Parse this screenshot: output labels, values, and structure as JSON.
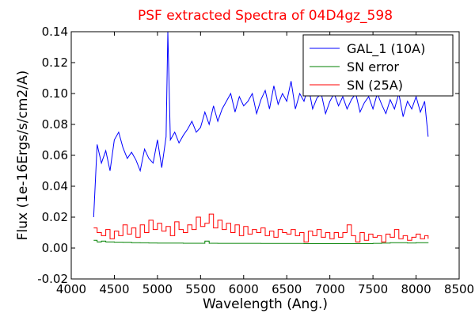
{
  "chart_data": {
    "type": "line",
    "title": "PSF extracted Spectra of 04D4gz_598",
    "title_color": "#ff0000",
    "xlabel": "Wavelength (Ang.)",
    "ylabel": "Flux (1e-16Ergs/s/cm2/A)",
    "xlim": [
      4000,
      8500
    ],
    "ylim": [
      -0.02,
      0.14
    ],
    "x_ticks": [
      4000,
      4500,
      5000,
      5500,
      6000,
      6500,
      7000,
      7500,
      8000,
      8500
    ],
    "x_tick_labels": [
      "4000",
      "4500",
      "5000",
      "5500",
      "6000",
      "6500",
      "7000",
      "7500",
      "8000",
      "8500"
    ],
    "y_ticks": [
      -0.02,
      0.0,
      0.02,
      0.04,
      0.06,
      0.08,
      0.1,
      0.12,
      0.14
    ],
    "y_tick_labels": [
      "-0.02",
      "0.00",
      "0.02",
      "0.04",
      "0.06",
      "0.08",
      "0.10",
      "0.12",
      "0.14"
    ],
    "grid": false,
    "legend_position": "top-right",
    "series": [
      {
        "name": "GAL_1 (10A)",
        "color": "#0000ff",
        "style": "line",
        "x": [
          4260,
          4300,
          4350,
          4400,
          4450,
          4500,
          4550,
          4600,
          4650,
          4700,
          4750,
          4800,
          4850,
          4900,
          4950,
          5000,
          5050,
          5100,
          5120,
          5150,
          5200,
          5250,
          5300,
          5350,
          5400,
          5450,
          5500,
          5550,
          5600,
          5650,
          5700,
          5750,
          5800,
          5850,
          5900,
          5950,
          6000,
          6050,
          6100,
          6150,
          6200,
          6250,
          6300,
          6350,
          6400,
          6450,
          6500,
          6550,
          6600,
          6650,
          6700,
          6750,
          6800,
          6850,
          6900,
          6950,
          7000,
          7050,
          7100,
          7150,
          7200,
          7250,
          7300,
          7350,
          7400,
          7450,
          7500,
          7550,
          7600,
          7650,
          7700,
          7750,
          7800,
          7850,
          7900,
          7950,
          8000,
          8050,
          8100,
          8140
        ],
        "y": [
          0.02,
          0.067,
          0.055,
          0.063,
          0.05,
          0.07,
          0.075,
          0.065,
          0.058,
          0.062,
          0.057,
          0.05,
          0.064,
          0.058,
          0.055,
          0.07,
          0.052,
          0.072,
          0.14,
          0.07,
          0.075,
          0.068,
          0.073,
          0.077,
          0.082,
          0.075,
          0.078,
          0.088,
          0.08,
          0.092,
          0.082,
          0.09,
          0.095,
          0.1,
          0.088,
          0.098,
          0.092,
          0.095,
          0.1,
          0.087,
          0.096,
          0.102,
          0.09,
          0.105,
          0.093,
          0.1,
          0.095,
          0.108,
          0.09,
          0.1,
          0.095,
          0.105,
          0.09,
          0.097,
          0.1,
          0.087,
          0.095,
          0.1,
          0.092,
          0.098,
          0.09,
          0.096,
          0.1,
          0.088,
          0.094,
          0.098,
          0.09,
          0.1,
          0.093,
          0.087,
          0.096,
          0.09,
          0.1,
          0.085,
          0.095,
          0.09,
          0.098,
          0.088,
          0.095,
          0.072
        ]
      },
      {
        "name": "SN error",
        "color": "#008000",
        "style": "step",
        "x": [
          4260,
          4300,
          4350,
          4400,
          4500,
          4600,
          4700,
          4800,
          4900,
          5000,
          5100,
          5200,
          5300,
          5400,
          5500,
          5550,
          5600,
          5700,
          5800,
          5900,
          6000,
          6100,
          6200,
          6300,
          6400,
          6500,
          6600,
          6700,
          6800,
          6900,
          7000,
          7100,
          7200,
          7300,
          7400,
          7500,
          7600,
          7700,
          7800,
          7900,
          8000,
          8100,
          8140
        ],
        "y": [
          0.005,
          0.004,
          0.0045,
          0.004,
          0.0038,
          0.0037,
          0.0035,
          0.0034,
          0.0033,
          0.0032,
          0.0032,
          0.0032,
          0.0031,
          0.0031,
          0.0031,
          0.0045,
          0.0031,
          0.003,
          0.003,
          0.003,
          0.003,
          0.003,
          0.0029,
          0.0029,
          0.0029,
          0.0029,
          0.0029,
          0.0028,
          0.0028,
          0.0028,
          0.0028,
          0.0028,
          0.0028,
          0.0028,
          0.0028,
          0.003,
          0.0032,
          0.0035,
          0.0035,
          0.0033,
          0.0035,
          0.0035,
          0.0033
        ]
      },
      {
        "name": "SN (25A)",
        "color": "#ff0000",
        "style": "step",
        "x": [
          4260,
          4300,
          4350,
          4400,
          4450,
          4500,
          4550,
          4600,
          4650,
          4700,
          4750,
          4800,
          4850,
          4900,
          4950,
          5000,
          5050,
          5100,
          5150,
          5200,
          5250,
          5300,
          5350,
          5400,
          5450,
          5500,
          5550,
          5600,
          5650,
          5700,
          5750,
          5800,
          5850,
          5900,
          5950,
          6000,
          6050,
          6100,
          6150,
          6200,
          6250,
          6300,
          6350,
          6400,
          6450,
          6500,
          6550,
          6600,
          6650,
          6700,
          6750,
          6800,
          6850,
          6900,
          6950,
          7000,
          7050,
          7100,
          7150,
          7200,
          7250,
          7300,
          7350,
          7400,
          7450,
          7500,
          7550,
          7600,
          7650,
          7700,
          7750,
          7800,
          7850,
          7900,
          7950,
          8000,
          8050,
          8100,
          8140
        ],
        "y": [
          0.013,
          0.01,
          0.008,
          0.012,
          0.006,
          0.011,
          0.008,
          0.015,
          0.009,
          0.013,
          0.007,
          0.015,
          0.01,
          0.018,
          0.012,
          0.016,
          0.011,
          0.014,
          0.008,
          0.017,
          0.012,
          0.01,
          0.015,
          0.012,
          0.02,
          0.014,
          0.016,
          0.022,
          0.013,
          0.018,
          0.012,
          0.016,
          0.01,
          0.015,
          0.008,
          0.014,
          0.009,
          0.012,
          0.01,
          0.013,
          0.008,
          0.011,
          0.007,
          0.012,
          0.01,
          0.009,
          0.012,
          0.008,
          0.01,
          0.004,
          0.011,
          0.008,
          0.012,
          0.007,
          0.01,
          0.006,
          0.01,
          0.007,
          0.01,
          0.015,
          0.008,
          0.004,
          0.01,
          0.005,
          0.009,
          0.007,
          0.008,
          0.004,
          0.009,
          0.007,
          0.012,
          0.006,
          0.008,
          0.005,
          0.007,
          0.009,
          0.006,
          0.008,
          0.006
        ]
      }
    ]
  }
}
